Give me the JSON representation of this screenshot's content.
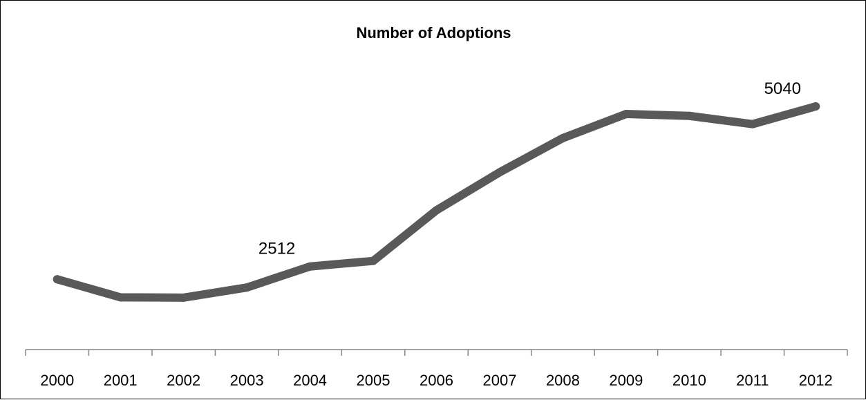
{
  "chart_data": {
    "type": "line",
    "title": "Number of Adoptions",
    "xlabel": "",
    "ylabel": "",
    "categories": [
      "2000",
      "2001",
      "2002",
      "2003",
      "2004",
      "2005",
      "2006",
      "2007",
      "2008",
      "2009",
      "2010",
      "2011",
      "2012"
    ],
    "series": [
      {
        "values": [
          2310,
          2025,
          2020,
          2180,
          2512,
          2600,
          3400,
          4000,
          4540,
          4920,
          4890,
          4760,
          5040
        ],
        "color": "#595959"
      }
    ],
    "data_labels": [
      {
        "category": "2004",
        "text": "2512"
      },
      {
        "category": "2012",
        "text": "5040"
      }
    ],
    "ylim": [
      1200,
      6000
    ],
    "grid": false,
    "legend": "none"
  }
}
